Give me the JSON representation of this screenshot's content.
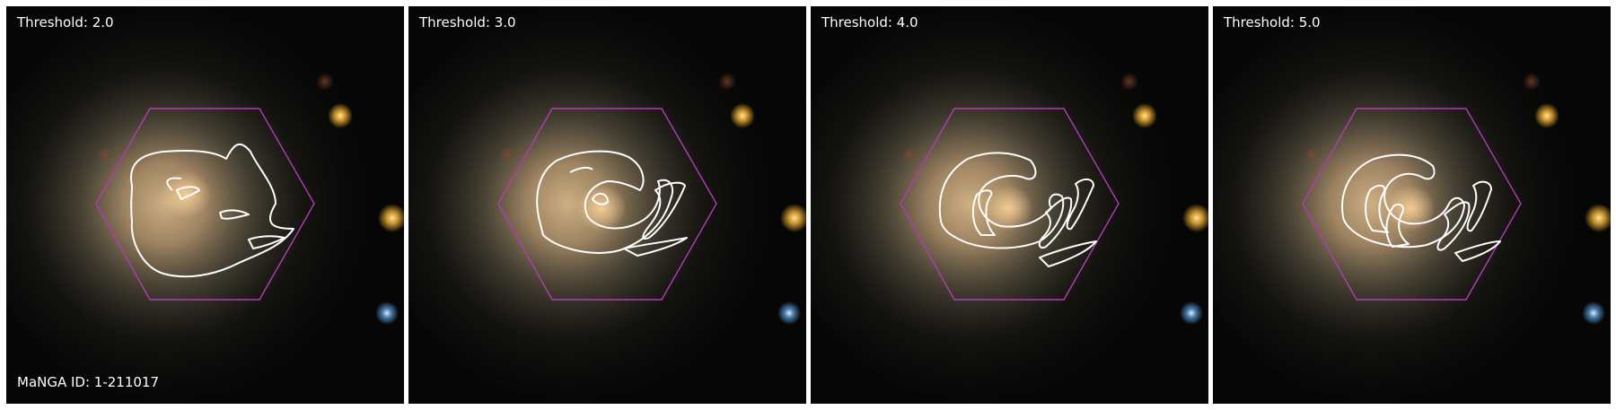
{
  "figure": {
    "galaxy_id_label": "MaNGA ID: 1-211017",
    "colors": {
      "hexagon": "#b23cb8",
      "contour": "#ffffff",
      "galaxy_core": "#e8c08a",
      "background": "#050505"
    },
    "panels": [
      {
        "threshold_label": "Threshold: 2.0"
      },
      {
        "threshold_label": "Threshold: 3.0"
      },
      {
        "threshold_label": "Threshold: 4.0"
      },
      {
        "threshold_label": "Threshold: 5.0"
      }
    ]
  }
}
